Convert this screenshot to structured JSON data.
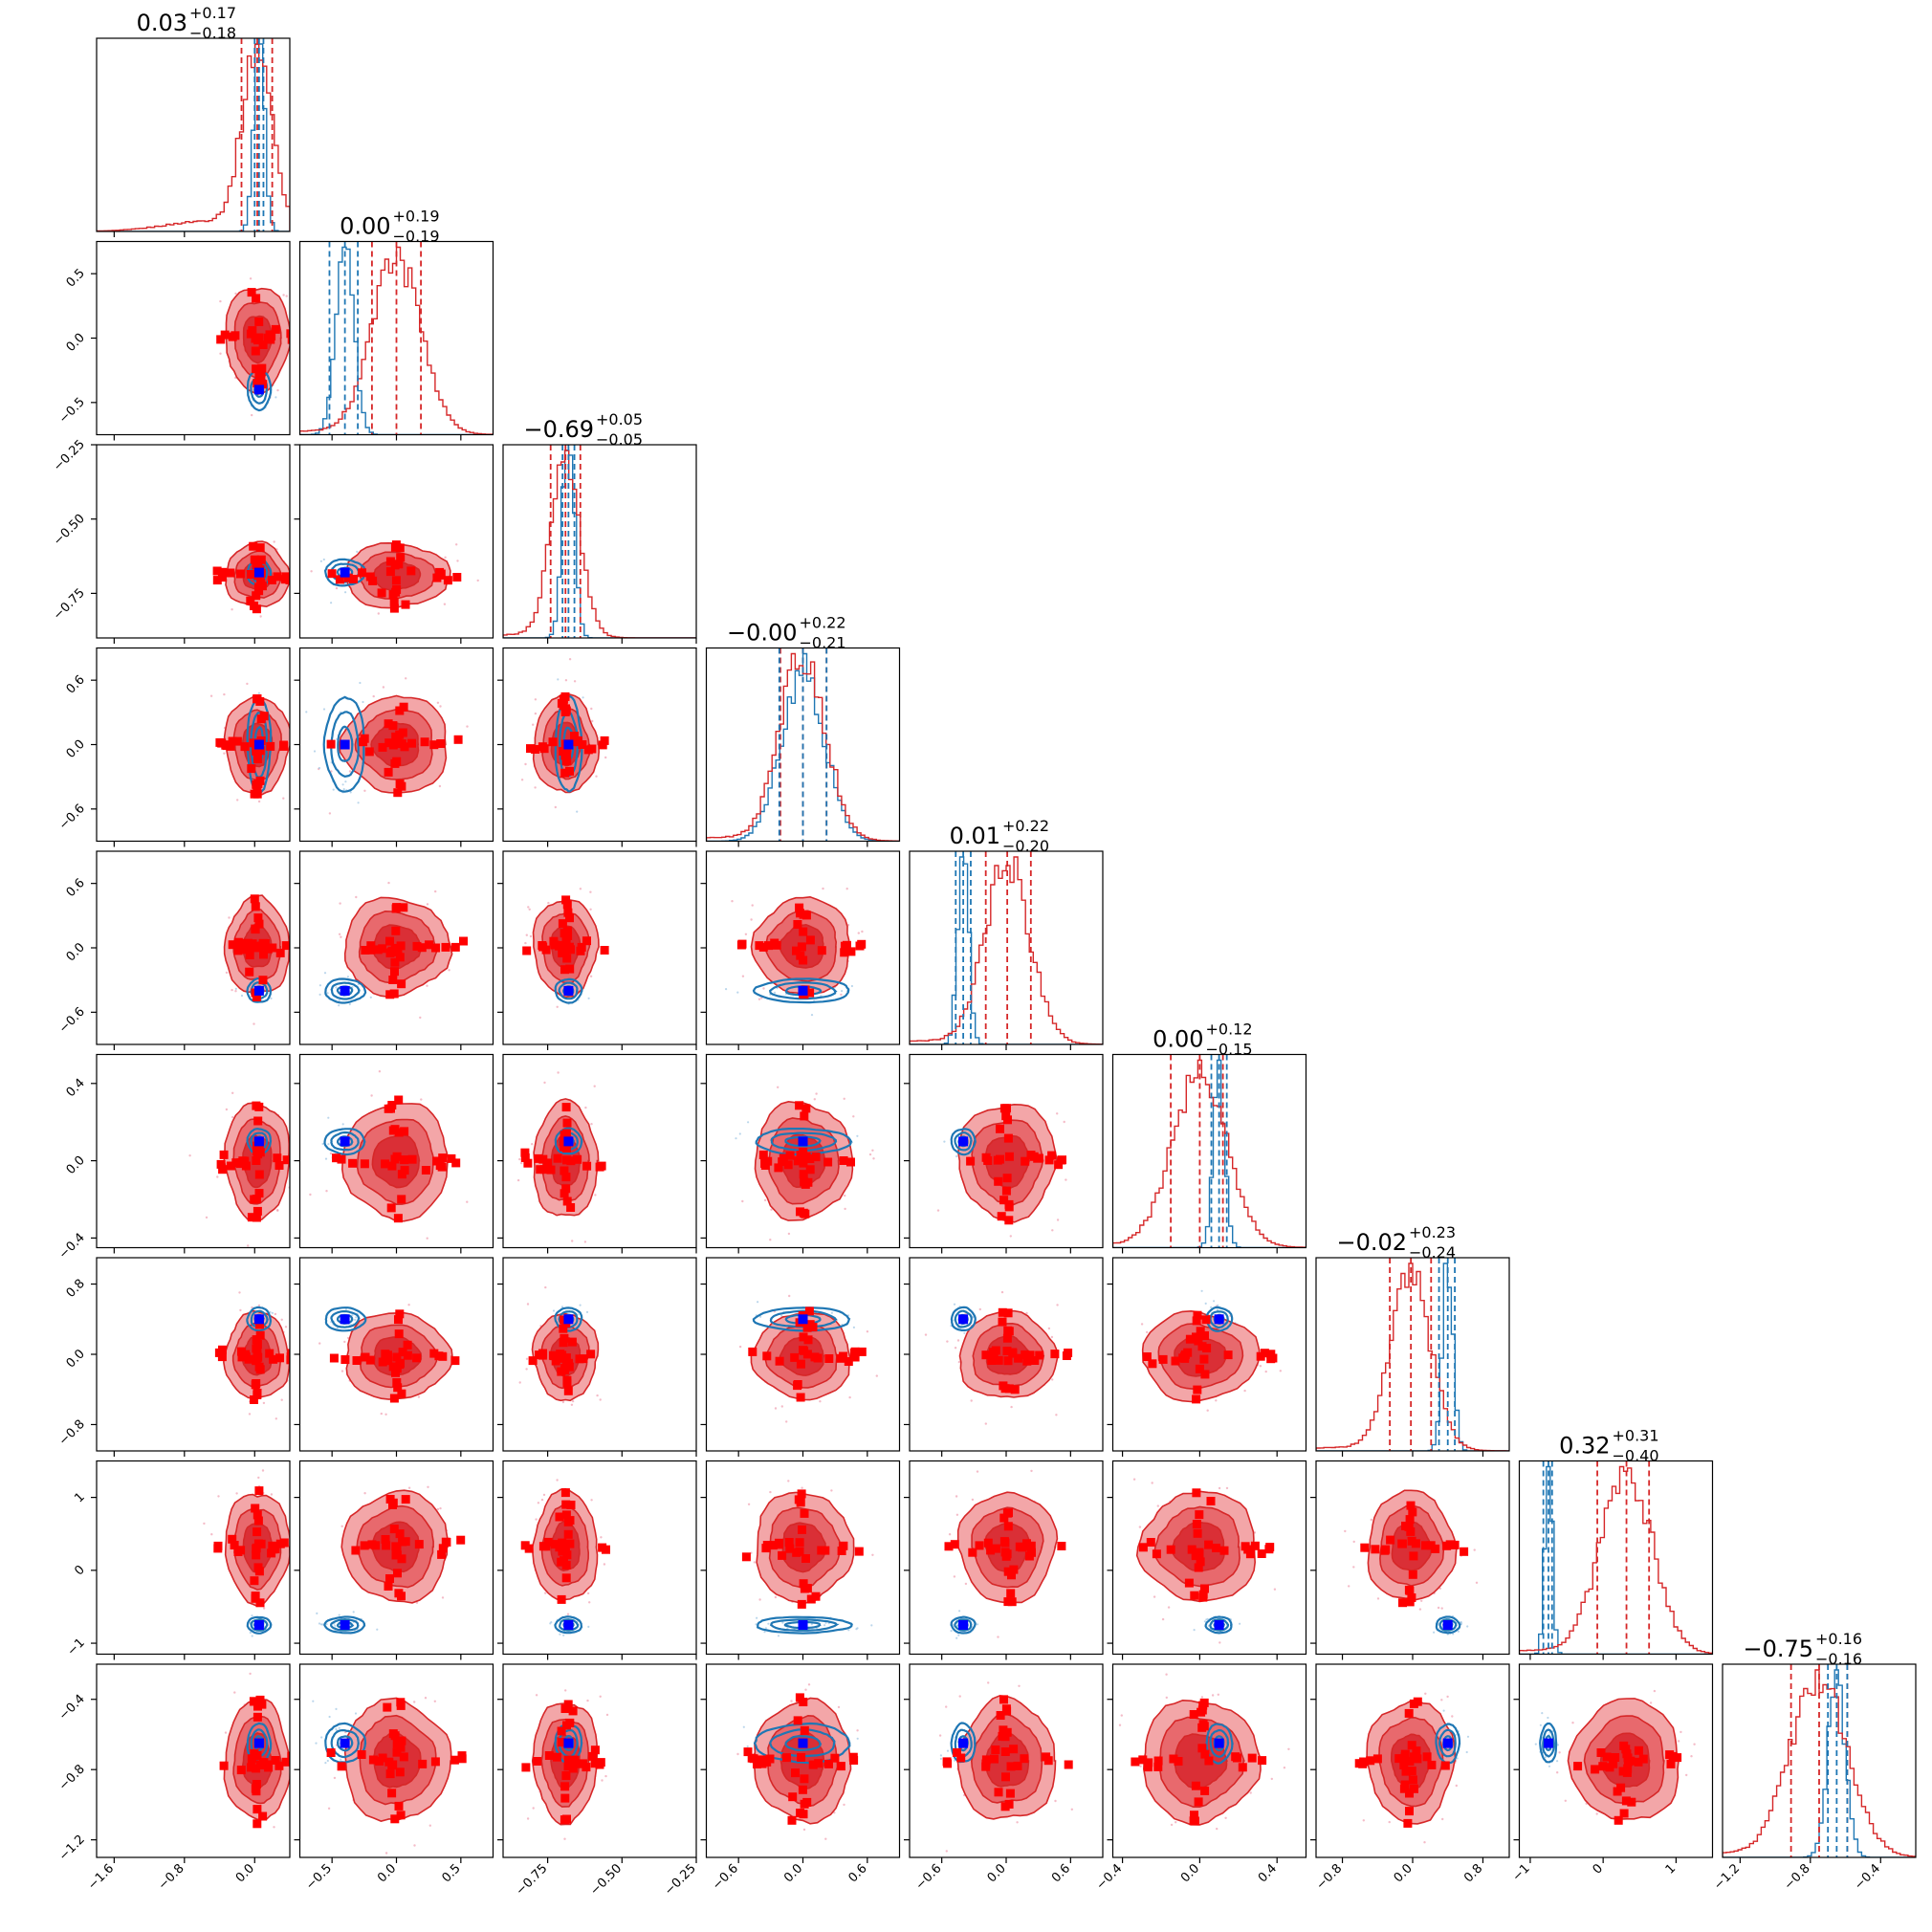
{
  "chart_data": {
    "type": "corner",
    "n_params": 9,
    "grid": false,
    "colors": {
      "red_line": "#d62728",
      "red_fill_outer": "#f3a6a8",
      "red_fill_mid": "#e8696d",
      "red_fill_inner": "#da2f36",
      "red_marker": "#ff0000",
      "blue_line": "#1f77b4",
      "blue_marker": "#0000ff",
      "frame": "#000000"
    },
    "axis_ranges": [
      [
        -1.8,
        0.4
      ],
      [
        -0.75,
        0.75
      ],
      [
        -0.9,
        -0.25
      ],
      [
        -0.9,
        0.9
      ],
      [
        -0.9,
        0.9
      ],
      [
        -0.45,
        0.55
      ],
      [
        -1.1,
        1.1
      ],
      [
        -1.15,
        1.5
      ],
      [
        -1.3,
        -0.2
      ]
    ],
    "ticks": [
      [
        "-1.6",
        "-0.8",
        "0.0"
      ],
      [
        "-0.5",
        "0.0",
        "0.5"
      ],
      [
        "-0.75",
        "-0.50",
        "-0.25"
      ],
      [
        "-0.6",
        "0.0",
        "0.6"
      ],
      [
        "-0.6",
        "0.0",
        "0.6"
      ],
      [
        "-0.4",
        "0.0",
        "0.4"
      ],
      [
        "-0.8",
        "0.0",
        "0.8"
      ],
      [
        "-1",
        "0",
        "1"
      ],
      [
        "-1.2",
        "-0.8",
        "-0.4"
      ]
    ],
    "tick_values": [
      [
        -1.6,
        -0.8,
        0.0
      ],
      [
        -0.5,
        0.0,
        0.5
      ],
      [
        -0.75,
        -0.5,
        -0.25
      ],
      [
        -0.6,
        0.0,
        0.6
      ],
      [
        -0.6,
        0.0,
        0.6
      ],
      [
        -0.4,
        0.0,
        0.4
      ],
      [
        -0.8,
        0.0,
        0.8
      ],
      [
        -1,
        0,
        1
      ],
      [
        -1.2,
        -0.8,
        -0.4
      ]
    ],
    "titles": [
      {
        "median": "0.03",
        "plus": "+0.17",
        "minus": "−0.18"
      },
      {
        "median": "0.00",
        "plus": "+0.19",
        "minus": "−0.19"
      },
      {
        "median": "−0.69",
        "plus": "+0.05",
        "minus": "−0.05"
      },
      {
        "median": "−0.00",
        "plus": "+0.22",
        "minus": "−0.21"
      },
      {
        "median": "0.01",
        "plus": "+0.22",
        "minus": "−0.20"
      },
      {
        "median": "0.00",
        "plus": "+0.12",
        "minus": "−0.15"
      },
      {
        "median": "−0.02",
        "plus": "+0.23",
        "minus": "−0.24"
      },
      {
        "median": "0.32",
        "plus": "+0.31",
        "minus": "−0.40"
      },
      {
        "median": "−0.75",
        "plus": "+0.16",
        "minus": "−0.16"
      }
    ],
    "red_posterior": {
      "center": [
        0.03,
        0.0,
        -0.69,
        0.0,
        0.01,
        0.0,
        -0.02,
        0.32,
        -0.75
      ],
      "sigma": [
        0.17,
        0.19,
        0.05,
        0.21,
        0.21,
        0.14,
        0.23,
        0.35,
        0.16
      ],
      "quantiles_16_50_84": [
        [
          -0.15,
          0.03,
          0.2
        ],
        [
          -0.19,
          0.0,
          0.19
        ],
        [
          -0.74,
          -0.69,
          -0.64
        ],
        [
          -0.21,
          0.0,
          0.22
        ],
        [
          -0.19,
          0.01,
          0.23
        ],
        [
          -0.15,
          0.0,
          0.12
        ],
        [
          -0.26,
          -0.02,
          0.21
        ],
        [
          -0.08,
          0.32,
          0.63
        ],
        [
          -0.91,
          -0.75,
          -0.59
        ]
      ]
    },
    "blue_posterior": {
      "center": [
        0.05,
        -0.4,
        -0.68,
        0.0,
        -0.4,
        0.1,
        0.4,
        -0.75,
        -0.65
      ],
      "sigma": [
        0.06,
        0.07,
        0.02,
        0.2,
        0.05,
        0.03,
        0.06,
        0.05,
        0.05
      ],
      "quantiles_16_50_84": [
        [
          0.0,
          0.05,
          0.1
        ],
        [
          -0.52,
          -0.4,
          -0.3
        ],
        [
          -0.7,
          -0.68,
          -0.66
        ],
        [
          -0.22,
          0.0,
          0.22
        ],
        [
          -0.47,
          -0.4,
          -0.33
        ],
        [
          0.06,
          0.1,
          0.14
        ],
        [
          0.3,
          0.4,
          0.48
        ],
        [
          -0.82,
          -0.75,
          -0.7
        ],
        [
          -0.7,
          -0.65,
          -0.59
        ]
      ]
    },
    "true_values": [
      0.05,
      -0.4,
      -0.68,
      0.0,
      -0.4,
      0.1,
      0.4,
      -0.75,
      -0.65
    ]
  }
}
